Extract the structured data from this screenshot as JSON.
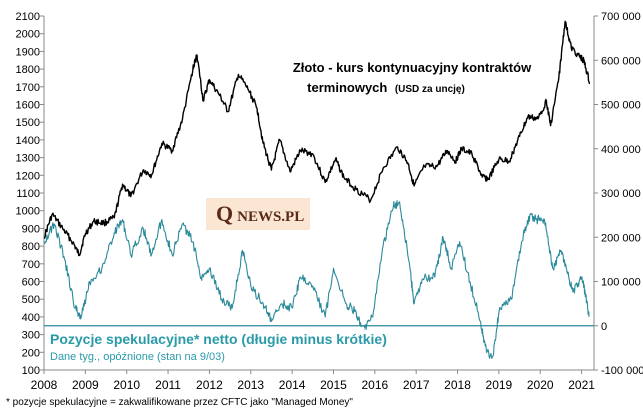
{
  "chart_data": {
    "type": "line",
    "title_line1": "Złoto - kurs kontynuacyjny kontraktów",
    "title_line2": "terminowych",
    "title_unit": "(USD  za  uncję)",
    "logo_text_q": "Q",
    "logo_text_rest": "NEWS.PL",
    "left_axis": {
      "ylim": [
        100,
        2100
      ],
      "ticks": [
        "100",
        "200",
        "300",
        "400",
        "500",
        "600",
        "700",
        "800",
        "900",
        "1000",
        "1100",
        "1200",
        "1300",
        "1400",
        "1500",
        "1600",
        "1700",
        "1800",
        "1900",
        "2000",
        "2100"
      ]
    },
    "right_axis": {
      "ylim": [
        -100000,
        700000
      ],
      "ticks": [
        "-100 000",
        "0",
        "100 000",
        "200 000",
        "300 000",
        "400 000",
        "500 000",
        "600 000",
        "700 000"
      ]
    },
    "x_axis": {
      "xlim": [
        2008,
        2021.3
      ],
      "ticks": [
        "2008",
        "2009",
        "2010",
        "2011",
        "2012",
        "2013",
        "2014",
        "2015",
        "2016",
        "2017",
        "2018",
        "2019",
        "2020",
        "2021"
      ]
    },
    "series": [
      {
        "name": "gold",
        "axis": "left",
        "color": "#000000",
        "points": [
          [
            2008.0,
            850
          ],
          [
            2008.2,
            980
          ],
          [
            2008.45,
            900
          ],
          [
            2008.7,
            820
          ],
          [
            2008.85,
            750
          ],
          [
            2009.0,
            870
          ],
          [
            2009.2,
            940
          ],
          [
            2009.45,
            930
          ],
          [
            2009.7,
            960
          ],
          [
            2009.9,
            1150
          ],
          [
            2010.1,
            1080
          ],
          [
            2010.4,
            1230
          ],
          [
            2010.6,
            1200
          ],
          [
            2010.85,
            1380
          ],
          [
            2011.1,
            1340
          ],
          [
            2011.35,
            1520
          ],
          [
            2011.6,
            1800
          ],
          [
            2011.7,
            1880
          ],
          [
            2011.85,
            1620
          ],
          [
            2012.0,
            1740
          ],
          [
            2012.25,
            1650
          ],
          [
            2012.45,
            1560
          ],
          [
            2012.7,
            1770
          ],
          [
            2012.95,
            1680
          ],
          [
            2013.15,
            1580
          ],
          [
            2013.3,
            1380
          ],
          [
            2013.5,
            1230
          ],
          [
            2013.7,
            1400
          ],
          [
            2013.95,
            1220
          ],
          [
            2014.2,
            1340
          ],
          [
            2014.5,
            1320
          ],
          [
            2014.8,
            1160
          ],
          [
            2015.05,
            1290
          ],
          [
            2015.25,
            1190
          ],
          [
            2015.55,
            1120
          ],
          [
            2015.9,
            1060
          ],
          [
            2016.2,
            1240
          ],
          [
            2016.55,
            1360
          ],
          [
            2016.8,
            1270
          ],
          [
            2016.95,
            1140
          ],
          [
            2017.2,
            1250
          ],
          [
            2017.5,
            1250
          ],
          [
            2017.75,
            1340
          ],
          [
            2017.95,
            1280
          ],
          [
            2018.1,
            1350
          ],
          [
            2018.35,
            1320
          ],
          [
            2018.6,
            1190
          ],
          [
            2018.75,
            1180
          ],
          [
            2019.0,
            1290
          ],
          [
            2019.25,
            1280
          ],
          [
            2019.5,
            1420
          ],
          [
            2019.7,
            1530
          ],
          [
            2019.95,
            1520
          ],
          [
            2020.15,
            1620
          ],
          [
            2020.25,
            1480
          ],
          [
            2020.45,
            1750
          ],
          [
            2020.6,
            2070
          ],
          [
            2020.75,
            1920
          ],
          [
            2020.95,
            1870
          ],
          [
            2021.05,
            1850
          ],
          [
            2021.2,
            1720
          ]
        ]
      },
      {
        "name": "net-speculative",
        "axis": "right",
        "color": "#2a8a9a",
        "points": [
          [
            2008.0,
            190000
          ],
          [
            2008.25,
            230000
          ],
          [
            2008.5,
            150000
          ],
          [
            2008.75,
            40000
          ],
          [
            2008.9,
            20000
          ],
          [
            2009.1,
            100000
          ],
          [
            2009.4,
            130000
          ],
          [
            2009.7,
            210000
          ],
          [
            2009.9,
            240000
          ],
          [
            2010.1,
            160000
          ],
          [
            2010.4,
            220000
          ],
          [
            2010.6,
            160000
          ],
          [
            2010.85,
            240000
          ],
          [
            2011.1,
            160000
          ],
          [
            2011.35,
            230000
          ],
          [
            2011.6,
            190000
          ],
          [
            2011.8,
            110000
          ],
          [
            2012.0,
            130000
          ],
          [
            2012.3,
            60000
          ],
          [
            2012.55,
            40000
          ],
          [
            2012.8,
            170000
          ],
          [
            2013.0,
            90000
          ],
          [
            2013.3,
            50000
          ],
          [
            2013.5,
            10000
          ],
          [
            2013.75,
            50000
          ],
          [
            2014.0,
            40000
          ],
          [
            2014.2,
            110000
          ],
          [
            2014.5,
            90000
          ],
          [
            2014.8,
            20000
          ],
          [
            2015.0,
            130000
          ],
          [
            2015.3,
            50000
          ],
          [
            2015.55,
            30000
          ],
          [
            2015.7,
            -15000
          ],
          [
            2015.95,
            20000
          ],
          [
            2016.2,
            180000
          ],
          [
            2016.45,
            270000
          ],
          [
            2016.6,
            280000
          ],
          [
            2016.85,
            130000
          ],
          [
            2016.95,
            50000
          ],
          [
            2017.2,
            110000
          ],
          [
            2017.45,
            110000
          ],
          [
            2017.65,
            200000
          ],
          [
            2017.85,
            130000
          ],
          [
            2018.05,
            190000
          ],
          [
            2018.3,
            100000
          ],
          [
            2018.55,
            10000
          ],
          [
            2018.7,
            -60000
          ],
          [
            2018.85,
            -70000
          ],
          [
            2019.0,
            30000
          ],
          [
            2019.3,
            60000
          ],
          [
            2019.55,
            190000
          ],
          [
            2019.75,
            250000
          ],
          [
            2019.9,
            240000
          ],
          [
            2020.1,
            240000
          ],
          [
            2020.3,
            130000
          ],
          [
            2020.5,
            170000
          ],
          [
            2020.65,
            120000
          ],
          [
            2020.8,
            80000
          ],
          [
            2021.0,
            110000
          ],
          [
            2021.1,
            70000
          ],
          [
            2021.18,
            20000
          ]
        ]
      }
    ],
    "reference_line": {
      "axis": "right",
      "value": 0,
      "color": "#2a8a9a"
    },
    "positions_label": "Pozycje spekulacyjne* netto (długie minus krótkie)",
    "positions_note": "Dane tyg.,  opóźnione (stan na 9/03)",
    "footnote": "* pozycje spekulacyjne = zakwalifikowane przez CFTC jako \"Managed Money\"",
    "grid": false,
    "legend": "none"
  }
}
